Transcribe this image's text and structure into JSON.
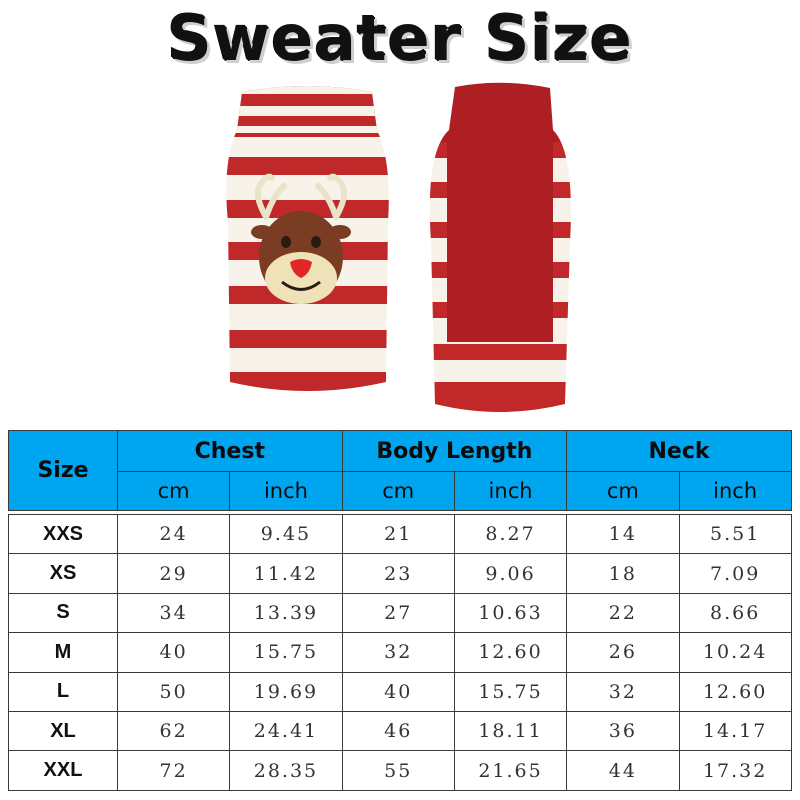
{
  "title": "Sweater Size",
  "colors": {
    "header_bg": "#00a5ef",
    "stripe_red": "#c0282a",
    "stripe_white": "#f7f3ea"
  },
  "images": [
    "sweater-front-reindeer",
    "sweater-back"
  ],
  "table": {
    "size_header": "Size",
    "groups": [
      "Chest",
      "Body Length",
      "Neck"
    ],
    "units": [
      "cm",
      "inch",
      "cm",
      "inch",
      "cm",
      "inch"
    ],
    "rows": [
      [
        "XXS",
        "24",
        "9.45",
        "21",
        "8.27",
        "14",
        "5.51"
      ],
      [
        "XS",
        "29",
        "11.42",
        "23",
        "9.06",
        "18",
        "7.09"
      ],
      [
        "S",
        "34",
        "13.39",
        "27",
        "10.63",
        "22",
        "8.66"
      ],
      [
        "M",
        "40",
        "15.75",
        "32",
        "12.60",
        "26",
        "10.24"
      ],
      [
        "L",
        "50",
        "19.69",
        "40",
        "15.75",
        "32",
        "12.60"
      ],
      [
        "XL",
        "62",
        "24.41",
        "46",
        "18.11",
        "36",
        "14.17"
      ],
      [
        "XXL",
        "72",
        "28.35",
        "55",
        "21.65",
        "44",
        "17.32"
      ]
    ]
  }
}
